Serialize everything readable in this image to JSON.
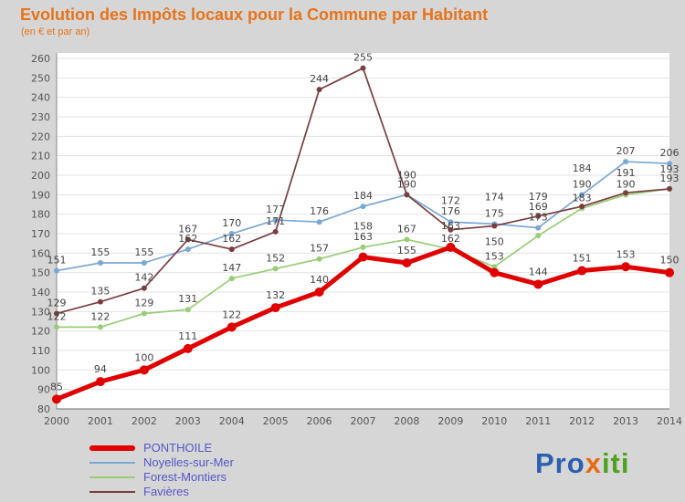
{
  "title": "Evolution des Impôts locaux pour la Commune par Habitant",
  "subtitle": "(en € et par an)",
  "chart_data": {
    "type": "line",
    "x": [
      2000,
      2001,
      2002,
      2003,
      2004,
      2005,
      2006,
      2007,
      2008,
      2009,
      2010,
      2011,
      2012,
      2013,
      2014
    ],
    "ylim": [
      80,
      260
    ],
    "ytick_step": 10,
    "grid": true,
    "legend_position": "bottom-left",
    "label_color": "#444444",
    "series": [
      {
        "name": "PONTHOILE",
        "color": "#e00000",
        "line_width": 5,
        "marker_radius": 5,
        "values": [
          85,
          94,
          100,
          111,
          122,
          132,
          140,
          158,
          155,
          163,
          150,
          144,
          151,
          153,
          150
        ]
      },
      {
        "name": "Noyelles-sur-Mer",
        "color": "#7aa7d4",
        "line_width": 1.7,
        "marker_radius": 3,
        "values": [
          151,
          155,
          155,
          162,
          170,
          177,
          176,
          184,
          190,
          176,
          175,
          173,
          190,
          207,
          206
        ]
      },
      {
        "name": "Forest-Montiers",
        "color": "#99cc77",
        "line_width": 1.7,
        "marker_radius": 3,
        "values": [
          122,
          122,
          129,
          131,
          147,
          152,
          157,
          163,
          167,
          162,
          153,
          169,
          183,
          190,
          193
        ]
      },
      {
        "name": "Favières",
        "color": "#7a3e3e",
        "line_width": 1.7,
        "marker_radius": 3,
        "values": [
          129,
          135,
          142,
          167,
          162,
          171,
          244,
          255,
          190,
          172,
          174,
          179,
          184,
          191,
          193
        ]
      }
    ]
  },
  "logo": {
    "part1": "Pro",
    "part2": "x",
    "part3": "iti"
  },
  "colors": {
    "background": "#d6d6d6",
    "plot_bg": "#ffffff",
    "title": "#e8731a",
    "legend_text": "#5656c8",
    "grid": "#e3e3e3",
    "axis": "#8a8a8a",
    "tick_text": "#555555"
  }
}
